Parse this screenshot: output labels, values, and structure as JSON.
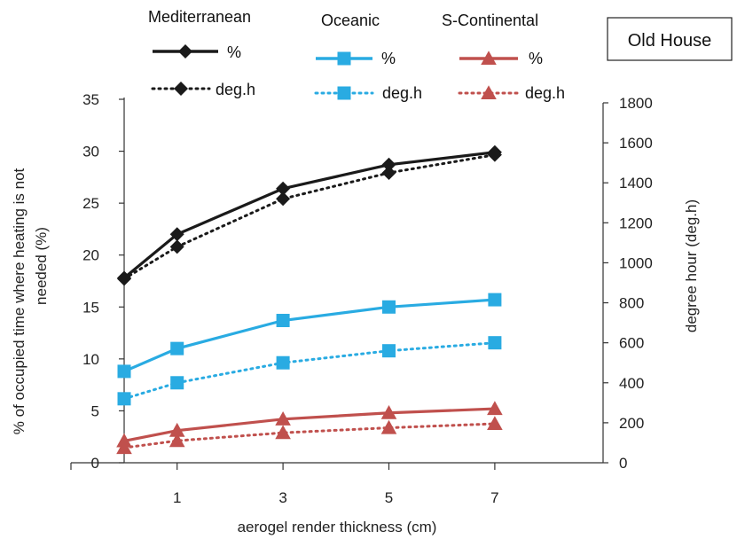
{
  "chart_data": {
    "type": "line",
    "annotation": "Old House",
    "xlabel": "aerogel render thickness (cm)",
    "ylabel_left": "% of occupied time where heating is not needed (%)",
    "ylabel_right": "degree hour (deg.h)",
    "ylim_left": [
      0,
      35
    ],
    "ylim_right": [
      0,
      1800
    ],
    "x_ticks": [
      1,
      3,
      5,
      7
    ],
    "y_ticks_left": [
      0,
      5,
      10,
      15,
      20,
      25,
      30,
      35
    ],
    "y_ticks_right": [
      0,
      200,
      400,
      600,
      800,
      1000,
      1200,
      1400,
      1600,
      1800
    ],
    "x": [
      0,
      1,
      3,
      5,
      7
    ],
    "legend_groups": [
      "Mediterranean",
      "Oceanic",
      "S-Continental"
    ],
    "legend_entries": [
      "%",
      "deg.h"
    ],
    "series": [
      {
        "group": "Mediterranean",
        "name": "%",
        "axis": "left",
        "color": "#1a1a1a",
        "marker": "diamond",
        "dash": "solid",
        "values": [
          17.8,
          22.0,
          26.4,
          28.7,
          29.9
        ]
      },
      {
        "group": "Mediterranean",
        "name": "deg.h",
        "axis": "right",
        "color": "#1a1a1a",
        "marker": "diamond",
        "dash": "dotted",
        "values": [
          920,
          1080,
          1320,
          1450,
          1540
        ]
      },
      {
        "group": "Oceanic",
        "name": "%",
        "axis": "left",
        "color": "#29abe2",
        "marker": "square",
        "dash": "solid",
        "values": [
          8.8,
          11.0,
          13.7,
          15.0,
          15.7
        ]
      },
      {
        "group": "Oceanic",
        "name": "deg.h",
        "axis": "right",
        "color": "#29abe2",
        "marker": "square",
        "dash": "dotted",
        "values": [
          320,
          400,
          500,
          560,
          600
        ]
      },
      {
        "group": "S-Continental",
        "name": "%",
        "axis": "left",
        "color": "#c0504d",
        "marker": "triangle",
        "dash": "solid",
        "values": [
          2.1,
          3.1,
          4.2,
          4.8,
          5.2
        ]
      },
      {
        "group": "S-Continental",
        "name": "deg.h",
        "axis": "right",
        "color": "#c0504d",
        "marker": "triangle",
        "dash": "dotted",
        "values": [
          75,
          110,
          150,
          175,
          195
        ]
      }
    ]
  }
}
